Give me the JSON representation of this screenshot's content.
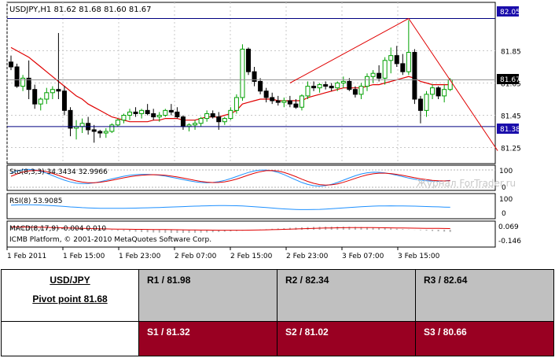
{
  "chart_data": {
    "type": "candlestick",
    "title": "USDJPY,H1  81.62 81.68 81.60 81.67",
    "ylim": [
      81.15,
      82.15
    ],
    "x_labels": [
      "1 Feb 2011",
      "1 Feb 15:00",
      "1 Feb 23:00",
      "2 Feb 07:00",
      "2 Feb 15:00",
      "2 Feb 23:00",
      "3 Feb 07:00",
      "3 Feb 15:00"
    ],
    "y_ticks": [
      "81.85",
      "81.65",
      "81.45",
      "81.25"
    ],
    "price_tags": {
      "top": "82.05",
      "current": "81.67",
      "bottom": "81.38"
    },
    "candles": [
      [
        81.78,
        81.82,
        81.73,
        81.75
      ],
      [
        81.75,
        81.77,
        81.62,
        81.63
      ],
      [
        81.63,
        81.7,
        81.6,
        81.68
      ],
      [
        81.68,
        81.79,
        81.55,
        81.61
      ],
      [
        81.61,
        81.64,
        81.49,
        81.52
      ],
      [
        81.52,
        81.56,
        81.48,
        81.55
      ],
      [
        81.55,
        81.62,
        81.52,
        81.59
      ],
      [
        81.59,
        81.63,
        81.55,
        81.61
      ],
      [
        81.61,
        81.96,
        81.55,
        81.6
      ],
      [
        81.6,
        81.63,
        81.45,
        81.48
      ],
      [
        81.48,
        81.5,
        81.32,
        81.37
      ],
      [
        81.37,
        81.42,
        81.3,
        81.38
      ],
      [
        81.38,
        81.43,
        81.34,
        81.4
      ],
      [
        81.4,
        81.44,
        81.33,
        81.36
      ],
      [
        81.36,
        81.39,
        81.28,
        81.35
      ],
      [
        81.35,
        81.36,
        81.31,
        81.34
      ],
      [
        81.34,
        81.37,
        81.31,
        81.35
      ],
      [
        81.35,
        81.4,
        81.34,
        81.39
      ],
      [
        81.39,
        81.43,
        81.38,
        81.42
      ],
      [
        81.42,
        81.46,
        81.4,
        81.45
      ],
      [
        81.45,
        81.49,
        81.42,
        81.47
      ],
      [
        81.47,
        81.5,
        81.44,
        81.46
      ],
      [
        81.46,
        81.49,
        81.43,
        81.48
      ],
      [
        81.48,
        81.52,
        81.45,
        81.46
      ],
      [
        81.46,
        81.49,
        81.42,
        81.44
      ],
      [
        81.44,
        81.47,
        81.41,
        81.45
      ],
      [
        81.45,
        81.49,
        81.44,
        81.48
      ],
      [
        81.48,
        81.52,
        81.45,
        81.47
      ],
      [
        81.47,
        81.5,
        81.43,
        81.44
      ],
      [
        81.44,
        81.45,
        81.36,
        81.38
      ],
      [
        81.38,
        81.4,
        81.35,
        81.39
      ],
      [
        81.39,
        81.42,
        81.36,
        81.4
      ],
      [
        81.4,
        81.44,
        81.38,
        81.43
      ],
      [
        81.43,
        81.48,
        81.41,
        81.46
      ],
      [
        81.46,
        81.48,
        81.43,
        81.44
      ],
      [
        81.44,
        81.47,
        81.36,
        81.41
      ],
      [
        81.41,
        81.44,
        81.39,
        81.43
      ],
      [
        81.43,
        81.5,
        81.42,
        81.48
      ],
      [
        81.48,
        81.58,
        81.46,
        81.56
      ],
      [
        81.56,
        81.89,
        81.54,
        81.86
      ],
      [
        81.86,
        81.87,
        81.7,
        81.72
      ],
      [
        81.72,
        81.75,
        81.63,
        81.66
      ],
      [
        81.66,
        81.68,
        81.58,
        81.6
      ],
      [
        81.6,
        81.62,
        81.53,
        81.56
      ],
      [
        81.56,
        81.59,
        81.52,
        81.54
      ],
      [
        81.54,
        81.57,
        81.51,
        81.53
      ],
      [
        81.53,
        81.56,
        81.5,
        81.54
      ],
      [
        81.54,
        81.57,
        81.5,
        81.52
      ],
      [
        81.52,
        81.55,
        81.49,
        81.5
      ],
      [
        81.5,
        81.58,
        81.48,
        81.57
      ],
      [
        81.57,
        81.66,
        81.55,
        81.63
      ],
      [
        81.63,
        81.66,
        81.6,
        81.62
      ],
      [
        81.62,
        81.65,
        81.59,
        81.64
      ],
      [
        81.64,
        81.66,
        81.61,
        81.63
      ],
      [
        81.63,
        81.65,
        81.6,
        81.62
      ],
      [
        81.62,
        81.66,
        81.6,
        81.65
      ],
      [
        81.65,
        81.69,
        81.62,
        81.66
      ],
      [
        81.66,
        81.68,
        81.6,
        81.61
      ],
      [
        81.61,
        81.63,
        81.56,
        81.58
      ],
      [
        81.58,
        81.65,
        81.55,
        81.63
      ],
      [
        81.63,
        81.71,
        81.6,
        81.69
      ],
      [
        81.69,
        81.73,
        81.65,
        81.71
      ],
      [
        81.71,
        81.76,
        81.66,
        81.68
      ],
      [
        81.68,
        81.81,
        81.64,
        81.79
      ],
      [
        81.79,
        81.87,
        81.71,
        81.82
      ],
      [
        81.82,
        81.88,
        81.75,
        81.77
      ],
      [
        81.77,
        81.83,
        81.7,
        81.72
      ],
      [
        81.72,
        82.04,
        81.7,
        81.84
      ],
      [
        81.84,
        81.86,
        81.52,
        81.55
      ],
      [
        81.55,
        81.57,
        81.4,
        81.48
      ],
      [
        81.48,
        81.6,
        81.44,
        81.58
      ],
      [
        81.58,
        81.64,
        81.55,
        81.62
      ],
      [
        81.62,
        81.63,
        81.55,
        81.57
      ],
      [
        81.57,
        81.64,
        81.53,
        81.61
      ],
      [
        81.61,
        81.68,
        81.6,
        81.67
      ]
    ],
    "ma_series": [
      81.87,
      81.85,
      81.83,
      81.81,
      81.78,
      81.75,
      81.72,
      81.69,
      81.66,
      81.63,
      81.6,
      81.57,
      81.55,
      81.52,
      81.5,
      81.48,
      81.46,
      81.44,
      81.43,
      81.42,
      81.41,
      81.41,
      81.41,
      81.41,
      81.42,
      81.42,
      81.43,
      81.43,
      81.43,
      81.42,
      81.42,
      81.42,
      81.43,
      81.44,
      81.44,
      81.44,
      81.45,
      81.46,
      81.48,
      81.52,
      81.53,
      81.54,
      81.55,
      81.55,
      81.55,
      81.54,
      81.54,
      81.54,
      81.54,
      81.54,
      81.56,
      81.57,
      81.58,
      81.59,
      81.6,
      81.61,
      81.62,
      81.62,
      81.62,
      81.62,
      81.63,
      81.64,
      81.64,
      81.65,
      81.66,
      81.67,
      81.68,
      81.69,
      81.68,
      81.66,
      81.65,
      81.64,
      81.64,
      81.64,
      81.64
    ],
    "trend_lines": [
      {
        "from_index": 47,
        "from_price": 81.65,
        "to_index": 67,
        "to_price": 82.05
      },
      {
        "from_index": 67,
        "from_price": 82.05,
        "to_index": 82,
        "to_price": 81.23
      }
    ],
    "indicators": [
      {
        "name": "Sto(8,3,3) 34.3434 32.9966",
        "ticks": [
          "100",
          "0"
        ]
      },
      {
        "name": "RSI(8) 53.9085",
        "ticks": [
          "100",
          "0"
        ]
      },
      {
        "name": "MACD(8,17,9) -0.004 0.010",
        "ticks": [
          "0.069",
          "-0.146"
        ]
      }
    ],
    "copyright": "ICMB Platform, © 2001-2010 MetaQuotes Software Corp.",
    "watermark": "Журнал ForTrader.ru",
    "colors": {
      "bull": "#00a000",
      "bear": "#000000",
      "ma": "#e00000",
      "stoch_main": "#1e90ff",
      "stoch_signal": "#e00000",
      "rsi": "#1e90ff",
      "macd": "#e00000",
      "level_line": "#000080"
    }
  },
  "pivot": {
    "pair": "USD/JPY",
    "pivot_label": "Pivot point 81.68",
    "r1": "R1 / 81.98",
    "r2": "R2 / 82.34",
    "r3": "R3 / 82.64",
    "s1": "S1 / 81.32",
    "s2": "S2 / 81.02",
    "s3": "S3 / 80.66",
    "colors": {
      "resistance_bg": "#c0c0c0",
      "support_bg": "#990022"
    }
  }
}
